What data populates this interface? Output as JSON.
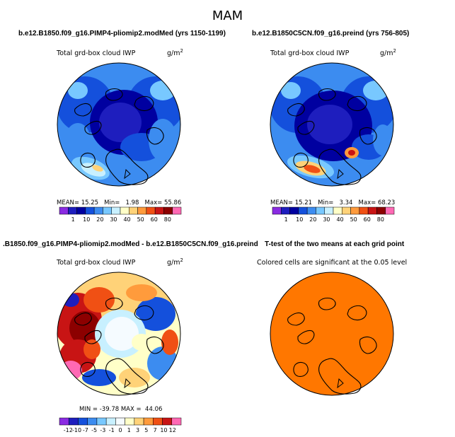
{
  "season": "MAM",
  "panels": [
    {
      "id": "p1",
      "title": "b.e12.B1850.f09_g16.PIMP4-pliomip2.modMed (yrs 1150-1199)",
      "subtitle": "Total grd-box cloud IWP",
      "units_base": "g/m",
      "units_exp": "2",
      "stats": {
        "mean_label": "MEAN=",
        "mean": "15.25",
        "min_label": "Min=",
        "min": "1.98",
        "max_label": "Max=",
        "max": "55.86"
      },
      "colorbar": {
        "colors": [
          "#8a2be2",
          "#1e1ebe",
          "#0000a0",
          "#1450dc",
          "#3c8cf0",
          "#78c8ff",
          "#c8f0ff",
          "#ffffc8",
          "#ffd278",
          "#ff9b3c",
          "#f05014",
          "#c81414",
          "#8c0000",
          "#ff69b4"
        ],
        "labels": [
          "1",
          "10",
          "20",
          "30",
          "40",
          "50",
          "60",
          "80"
        ]
      }
    },
    {
      "id": "p2",
      "title": "b.e12.B1850C5CN.f09_g16.preind (yrs 756-805)",
      "subtitle": "Total grd-box cloud IWP",
      "units_base": "g/m",
      "units_exp": "2",
      "stats": {
        "mean_label": "MEAN=",
        "mean": "15.21",
        "min_label": "Min=",
        "min": "3.34",
        "max_label": "Max=",
        "max": "68.23"
      },
      "colorbar": {
        "colors": [
          "#8a2be2",
          "#1e1ebe",
          "#0000a0",
          "#1450dc",
          "#3c8cf0",
          "#78c8ff",
          "#c8f0ff",
          "#ffffc8",
          "#ffd278",
          "#ff9b3c",
          "#f05014",
          "#c81414",
          "#8c0000",
          "#ff69b4"
        ],
        "labels": [
          "1",
          "10",
          "20",
          "30",
          "40",
          "50",
          "60",
          "80"
        ]
      }
    },
    {
      "id": "p3",
      "title": ".B1850.f09_g16.PIMP4-pliomip2.modMed - b.e12.B1850C5CN.f09_g16.preind",
      "subtitle": "Total grd-box cloud IWP",
      "units_base": "g/m",
      "units_exp": "2",
      "stats": {
        "min_label": "MIN =",
        "min": "-39.78",
        "max_label": "MAX =",
        "max": "44.06"
      },
      "colorbar": {
        "colors": [
          "#8a2be2",
          "#1e1ebe",
          "#1450dc",
          "#3c8cf0",
          "#78c8ff",
          "#c8f0ff",
          "#f5fbff",
          "#ffffc8",
          "#ffd278",
          "#ff9b3c",
          "#f05014",
          "#c81414",
          "#ff69b4"
        ],
        "labels": [
          "-12",
          "-10",
          "-7",
          "-5",
          "-3",
          "-1",
          "0",
          "1",
          "3",
          "5",
          "7",
          "10",
          "12"
        ]
      }
    },
    {
      "id": "p4",
      "title": "T-test of the two means at each grid point",
      "subtitle": "Colored cells are significant at the 0.05 level"
    }
  ],
  "colors": {
    "orange": "#ff7700",
    "coast": "#000000"
  }
}
